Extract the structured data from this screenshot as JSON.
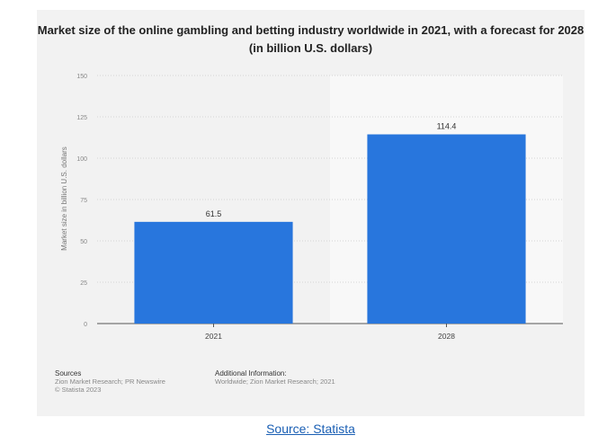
{
  "chart_data": {
    "type": "bar",
    "title": "Market size of the online gambling and betting industry worldwide in 2021, with a forecast for 2028 (in billion U.S. dollars)",
    "categories": [
      "2021",
      "2028"
    ],
    "values": [
      61.5,
      114.4
    ],
    "value_labels": [
      "61.5",
      "114.4"
    ],
    "ylabel": "Market size in billion U.S. dollars",
    "ylim": [
      0,
      150
    ],
    "yticks": [
      0,
      25,
      50,
      75,
      100,
      125,
      150
    ],
    "grid": true,
    "bar_color": "#2876dd",
    "forecast_shade_color": "#f8f8f8"
  },
  "footer": {
    "sources_heading": "Sources",
    "sources_lines": [
      "Zion Market Research; PR Newswire",
      "© Statista 2023"
    ],
    "additional_heading": "Additional Information:",
    "additional_text": "Worldwide; Zion Market Research; 2021"
  },
  "source_link": "Source: Statista"
}
